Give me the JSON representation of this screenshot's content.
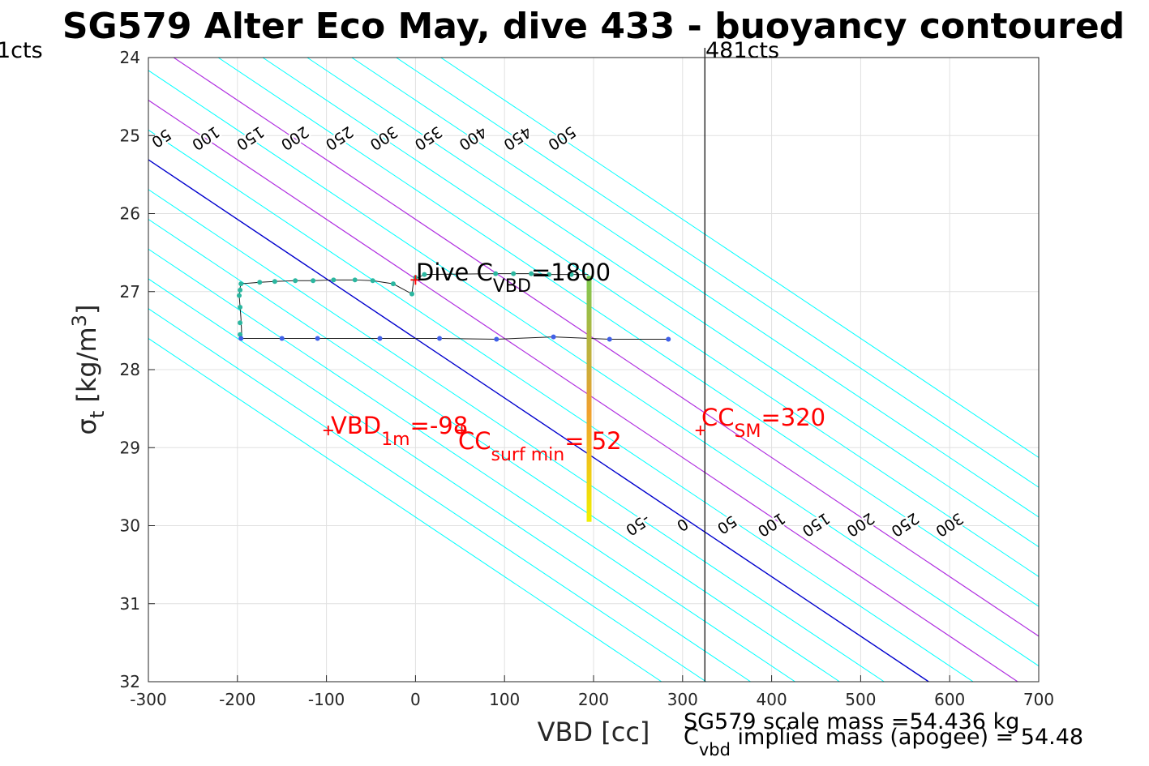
{
  "title": "SG579 Alter Eco May, dive 433 - buoyancy contoured",
  "xlabel": "VBD [cc]",
  "ylabel": {
    "main": "σ",
    "sub": "t",
    "unit_pre": " [kg/m",
    "unit_sup": "3",
    "unit_post": "]"
  },
  "left_marker_label": "1cts",
  "right_marker_label": "481cts",
  "annotations": {
    "dive_c": {
      "pre": "Dive C",
      "sub": "VBD",
      "post": "=1800"
    },
    "vbd_1m": {
      "pre": "VBD",
      "sub": "1m",
      "post": "=-98"
    },
    "cc_surf": {
      "pre": "CC",
      "sub": "surf min",
      "post": "= 52"
    },
    "cc_sm": {
      "pre": "CC",
      "sub": "SM",
      "post": "=320"
    }
  },
  "footer": {
    "line1": "SG579 scale mass =54.436 kg",
    "line2_pre": "C",
    "line2_sub": "vbd",
    "line2_post": " implied mass (apogee) = 54.48"
  },
  "colors": {
    "contour": "#00ffff",
    "zero_contour": "#0000cd",
    "highlight_contour": "#b030e0",
    "annotation": "#ff0000",
    "grid": "#e0e0e0",
    "dive_points": "#2bb7a0",
    "climb_points": "#4060e8"
  },
  "chart_data": {
    "type": "scatter",
    "xlim": [
      -300,
      700
    ],
    "ylim": [
      24,
      32
    ],
    "y_reversed": true,
    "grid": true,
    "x_ticks": [
      -300,
      -200,
      -100,
      0,
      100,
      200,
      300,
      400,
      500,
      600,
      700
    ],
    "x_tick_labels": [
      "-300",
      "-200",
      "-100",
      "0",
      "100",
      "200",
      "300",
      "400",
      "500",
      "600",
      "700"
    ],
    "y_ticks": [
      24,
      25,
      26,
      27,
      28,
      29,
      30,
      31,
      32
    ],
    "y_tick_labels": [
      "24",
      "25",
      "26",
      "27",
      "28",
      "29",
      "30",
      "31",
      "32"
    ],
    "contour_levels": [
      -300,
      -250,
      -200,
      -150,
      -100,
      -50,
      0,
      50,
      100,
      150,
      200,
      250,
      300,
      350,
      400,
      450,
      500
    ],
    "zero_contour_level": 0,
    "highlight_contour_levels": [
      100,
      200
    ],
    "vertical_marker_x": 325,
    "dive_trace": {
      "x": [
        -195,
        -196,
        -197,
        -198,
        -197,
        -196,
        -175,
        -158,
        -135,
        -115,
        -92,
        -68,
        -48,
        -25,
        -4,
        -2,
        10,
        90,
        110,
        130,
        150,
        175,
        194
      ],
      "y": [
        27.6,
        27.35,
        27.2,
        27.05,
        26.95,
        26.9,
        26.88,
        26.87,
        26.86,
        26.86,
        26.85,
        26.85,
        26.86,
        26.9,
        27.03,
        26.85,
        26.78,
        26.77,
        26.77,
        26.77,
        26.78,
        26.78,
        26.78
      ]
    },
    "dive_points": {
      "x": [
        -197,
        -197,
        -197,
        -198,
        -197,
        -196,
        -175,
        -158,
        -135,
        -115,
        -92,
        -68,
        -48,
        -25,
        -4,
        0,
        10,
        90,
        110,
        130,
        150,
        175
      ],
      "y": [
        27.55,
        27.4,
        27.2,
        27.05,
        26.98,
        26.9,
        26.88,
        26.87,
        26.86,
        26.86,
        26.85,
        26.85,
        26.86,
        26.9,
        27.03,
        26.82,
        26.78,
        26.77,
        26.77,
        26.77,
        26.78,
        26.78
      ]
    },
    "climb_trace": {
      "x": [
        -196,
        -150,
        -110,
        -40,
        27,
        91,
        155,
        218,
        284
      ],
      "y": [
        27.6,
        27.6,
        27.6,
        27.6,
        27.6,
        27.61,
        27.58,
        27.61,
        27.61
      ]
    },
    "climb_points": {
      "x": [
        -196,
        -150,
        -110,
        -40,
        27,
        91,
        155,
        218,
        284
      ],
      "y": [
        27.6,
        27.6,
        27.6,
        27.6,
        27.6,
        27.61,
        27.58,
        27.61,
        27.61
      ]
    },
    "apogee_segment": {
      "x": 195,
      "y_start": 26.8,
      "y_end": 29.95,
      "color_start": "#7dc850",
      "color_mid": "#f0a030",
      "color_end": "#f0f000"
    },
    "markers": [
      {
        "name": "vbd-1m",
        "x": -98,
        "y": 28.78
      },
      {
        "name": "cc-surf-min",
        "x": 52,
        "y": 28.78
      },
      {
        "name": "cc-sm",
        "x": 320,
        "y": 28.78
      },
      {
        "name": "dive-c",
        "x": 0,
        "y": 26.85
      }
    ]
  }
}
